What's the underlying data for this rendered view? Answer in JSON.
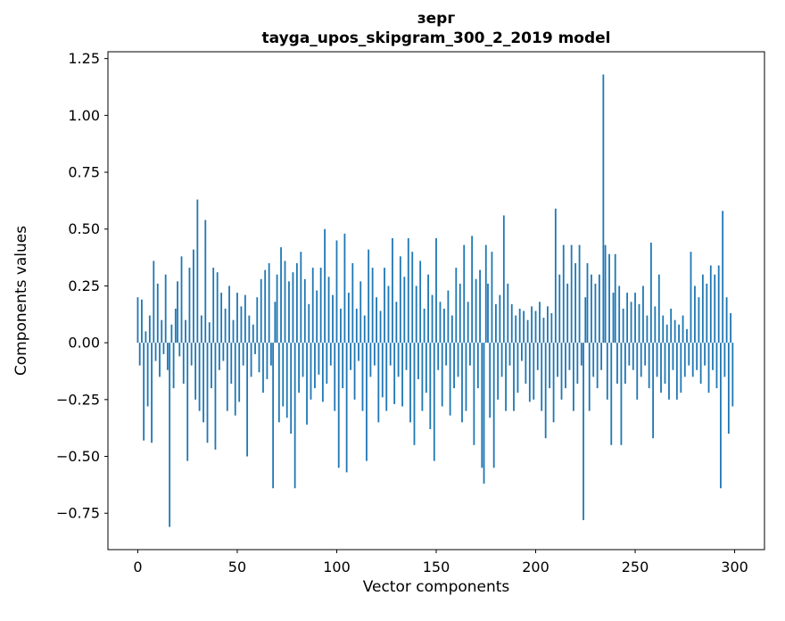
{
  "figure": {
    "title_line1": "зерг",
    "title_line2": "tayga_upos_skipgram_300_2_2019 model"
  },
  "chart_data": {
    "type": "bar",
    "title": "зерг",
    "subtitle": "tayga_upos_skipgram_300_2_2019 model",
    "xlabel": "Vector components",
    "ylabel": "Components values",
    "bar_color": "#1f77b4",
    "axis_color": "#000000",
    "xlim": [
      -15,
      315
    ],
    "ylim": [
      -0.91,
      1.28
    ],
    "grid": false,
    "legend": "none",
    "xticks": [
      {
        "label": "0",
        "value": 0
      },
      {
        "label": "50",
        "value": 50
      },
      {
        "label": "100",
        "value": 100
      },
      {
        "label": "150",
        "value": 150
      },
      {
        "label": "200",
        "value": 200
      },
      {
        "label": "250",
        "value": 250
      },
      {
        "label": "300",
        "value": 300
      }
    ],
    "yticks": [
      {
        "label": "1.25",
        "value": 1.25
      },
      {
        "label": "1.00",
        "value": 1.0
      },
      {
        "label": "0.75",
        "value": 0.75
      },
      {
        "label": "0.50",
        "value": 0.5
      },
      {
        "label": "0.25",
        "value": 0.25
      },
      {
        "label": "0.00",
        "value": 0.0
      },
      {
        "label": "−0.25",
        "value": -0.25
      },
      {
        "label": "−0.50",
        "value": -0.5
      },
      {
        "label": "−0.75",
        "value": -0.75
      }
    ],
    "x_start": 0,
    "values": [
      0.2,
      -0.1,
      0.19,
      -0.43,
      0.05,
      -0.28,
      0.12,
      -0.44,
      0.36,
      -0.08,
      0.26,
      -0.15,
      0.1,
      -0.05,
      0.3,
      -0.12,
      -0.81,
      0.08,
      -0.2,
      0.15,
      0.27,
      -0.06,
      0.38,
      -0.18,
      0.1,
      -0.52,
      0.33,
      -0.1,
      0.41,
      -0.25,
      0.63,
      -0.3,
      0.12,
      -0.35,
      0.54,
      -0.44,
      0.09,
      -0.2,
      0.33,
      -0.47,
      0.31,
      -0.12,
      0.22,
      -0.08,
      0.15,
      -0.3,
      0.25,
      -0.18,
      0.1,
      -0.32,
      0.22,
      -0.26,
      0.16,
      -0.1,
      0.21,
      -0.5,
      0.12,
      -0.15,
      0.08,
      -0.05,
      0.2,
      -0.13,
      0.28,
      -0.22,
      0.32,
      -0.16,
      0.35,
      -0.1,
      -0.64,
      0.18,
      0.3,
      -0.35,
      0.42,
      -0.28,
      0.36,
      -0.33,
      0.27,
      -0.4,
      0.31,
      -0.64,
      0.35,
      -0.22,
      0.4,
      -0.15,
      0.28,
      -0.36,
      0.17,
      -0.25,
      0.33,
      -0.2,
      0.23,
      -0.14,
      0.33,
      -0.26,
      0.5,
      -0.18,
      0.29,
      -0.1,
      0.21,
      -0.3,
      0.45,
      -0.55,
      0.15,
      -0.2,
      0.48,
      -0.57,
      0.22,
      -0.12,
      0.35,
      -0.25,
      0.15,
      -0.08,
      0.27,
      -0.3,
      0.12,
      -0.52,
      0.41,
      -0.15,
      0.33,
      -0.1,
      0.2,
      -0.35,
      0.14,
      -0.24,
      0.33,
      -0.3,
      0.25,
      -0.1,
      0.46,
      -0.27,
      0.18,
      -0.15,
      0.38,
      -0.28,
      0.29,
      -0.12,
      0.46,
      -0.35,
      0.4,
      -0.45,
      0.25,
      -0.16,
      0.36,
      -0.3,
      0.15,
      -0.22,
      0.3,
      -0.38,
      0.21,
      -0.52,
      0.46,
      -0.12,
      0.18,
      -0.28,
      0.15,
      -0.1,
      0.23,
      -0.32,
      0.12,
      -0.2,
      0.33,
      -0.15,
      0.26,
      -0.35,
      0.43,
      -0.3,
      0.18,
      -0.1,
      0.47,
      -0.45,
      0.28,
      -0.2,
      0.32,
      -0.55,
      -0.62,
      0.43,
      0.26,
      -0.33,
      0.4,
      -0.55,
      0.17,
      -0.25,
      0.21,
      -0.15,
      0.56,
      -0.3,
      0.26,
      -0.1,
      0.17,
      -0.3,
      0.12,
      -0.22,
      0.15,
      -0.08,
      0.14,
      -0.18,
      0.1,
      -0.26,
      0.16,
      -0.25,
      0.14,
      -0.12,
      0.18,
      -0.3,
      0.11,
      -0.42,
      0.16,
      -0.2,
      0.13,
      -0.35,
      0.59,
      -0.15,
      0.3,
      -0.25,
      0.43,
      -0.2,
      0.26,
      -0.12,
      0.43,
      -0.3,
      0.35,
      -0.18,
      0.43,
      -0.1,
      -0.78,
      0.2,
      0.35,
      -0.3,
      0.3,
      -0.15,
      0.26,
      -0.2,
      0.3,
      -0.12,
      1.18,
      0.43,
      -0.25,
      0.39,
      -0.45,
      0.22,
      0.39,
      -0.18,
      0.25,
      -0.45,
      0.15,
      -0.18,
      0.22,
      -0.1,
      0.18,
      -0.12,
      0.22,
      -0.25,
      0.17,
      -0.15,
      0.25,
      -0.1,
      0.12,
      -0.2,
      0.44,
      -0.42,
      0.16,
      -0.15,
      0.3,
      -0.22,
      0.12,
      -0.18,
      0.08,
      -0.25,
      0.15,
      -0.12,
      0.1,
      -0.25,
      0.08,
      -0.22,
      0.12,
      -0.15,
      0.06,
      -0.1,
      0.4,
      -0.15,
      0.25,
      -0.12,
      0.2,
      -0.18,
      0.3,
      -0.1,
      0.26,
      -0.22,
      0.34,
      -0.12,
      0.3,
      -0.2,
      0.34,
      -0.64,
      0.58,
      -0.15,
      0.2,
      -0.4,
      0.13,
      -0.28
    ]
  }
}
